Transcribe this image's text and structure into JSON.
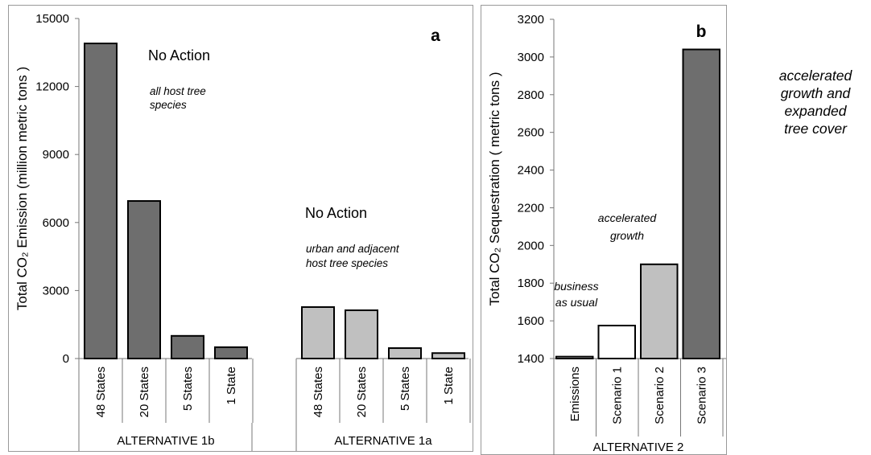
{
  "chart_data": [
    {
      "type": "bar",
      "panel_label": "a",
      "ylabel": "Total CO₂ Emission  (million metric tons )",
      "ylim": [
        0,
        15000
      ],
      "yticks": [
        "0",
        "3000",
        "6000",
        "9000",
        "12000",
        "15000"
      ],
      "ytick_values": [
        0,
        3000,
        6000,
        9000,
        12000,
        15000
      ],
      "grid": false,
      "groups": [
        {
          "label": "ALTERNATIVE 1b",
          "color": "#6e6e6e",
          "categories": [
            "48 States",
            "20 States",
            "5 States",
            "1 State"
          ],
          "values": [
            13900,
            6950,
            1000,
            500
          ]
        },
        {
          "label": "ALTERNATIVE 1a",
          "color": "#c0c0c0",
          "categories": [
            "48 States",
            "20 States",
            "5 States",
            "1 State"
          ],
          "values": [
            2270,
            2130,
            460,
            240
          ]
        }
      ],
      "annotations": {
        "no_action_1": "No Action",
        "host_1": [
          "all host tree",
          "species"
        ],
        "no_action_2": "No Action",
        "host_2": [
          "urban and adjacent",
          "host tree species"
        ]
      }
    },
    {
      "type": "bar",
      "panel_label": "b",
      "ylabel": "Total CO₂ Sequestration ( metric tons )",
      "ylim": [
        1400,
        3200
      ],
      "yticks": [
        "1400",
        "1600",
        "1800",
        "2000",
        "2200",
        "2400",
        "2600",
        "2800",
        "3000",
        "3200"
      ],
      "ytick_values": [
        1400,
        1600,
        1800,
        2000,
        2200,
        2400,
        2600,
        2800,
        3000,
        3200
      ],
      "grid": false,
      "group_label": "ALTERNATIVE 2",
      "categories": [
        "Emissions",
        "Scenario 1",
        "Scenario 2",
        "Scenario 3"
      ],
      "values": [
        1410,
        1575,
        1900,
        3040
      ],
      "colors": [
        "#ffffff",
        "#ffffff",
        "#c0c0c0",
        "#6e6e6e"
      ],
      "annotations": {
        "business": [
          "business",
          "as usual"
        ],
        "accelerated": [
          "accelerated",
          "growth"
        ]
      }
    }
  ],
  "side_note": [
    "accelerated",
    "growth and",
    "expanded",
    "tree cover"
  ]
}
